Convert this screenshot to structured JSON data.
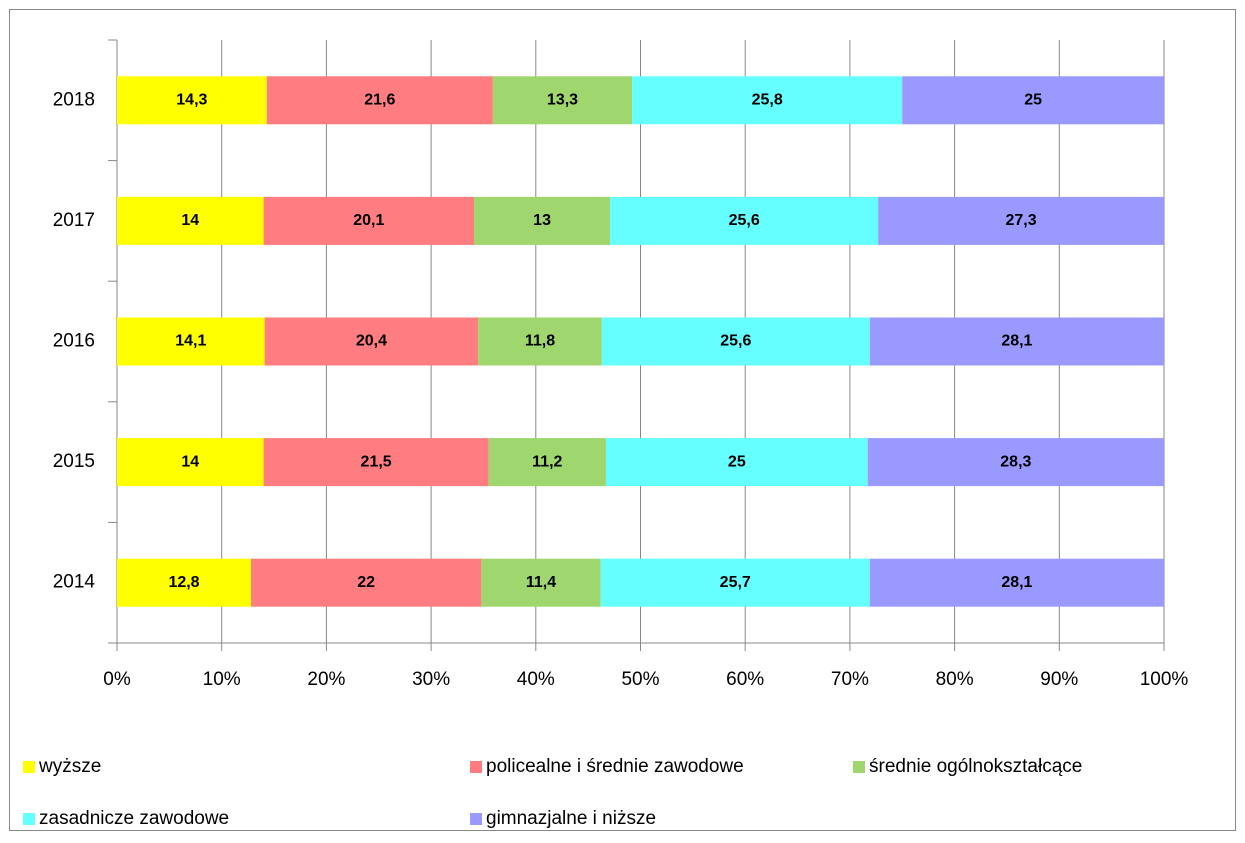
{
  "chart_data": {
    "type": "bar",
    "orientation": "horizontal",
    "stacked": true,
    "categories": [
      "2014",
      "2015",
      "2016",
      "2017",
      "2018"
    ],
    "series": [
      {
        "name": "wyższe",
        "color": "#ffff00",
        "values": [
          12.8,
          14,
          14.1,
          14,
          14.3
        ],
        "value_labels": [
          "12,8",
          "14",
          "14,1",
          "14",
          "14,3"
        ]
      },
      {
        "name": "policealne i średnie zawodowe",
        "color": "#ff7c80",
        "values": [
          22,
          21.5,
          20.4,
          20.1,
          21.6
        ],
        "value_labels": [
          "22",
          "21,5",
          "20,4",
          "20,1",
          "21,6"
        ]
      },
      {
        "name": "średnie ogólnokształcące",
        "color": "#9fd66e",
        "values": [
          11.4,
          11.2,
          11.8,
          13,
          13.3
        ],
        "value_labels": [
          "11,4",
          "11,2",
          "11,8",
          "13",
          "13,3"
        ]
      },
      {
        "name": "zasadnicze zawodowe",
        "color": "#66ffff",
        "values": [
          25.7,
          25,
          25.6,
          25.6,
          25.8
        ],
        "value_labels": [
          "25,7",
          "25",
          "25,6",
          "25,6",
          "25,8"
        ]
      },
      {
        "name": "gimnazjalne i niższe",
        "color": "#9999ff",
        "values": [
          28.1,
          28.3,
          28.1,
          27.3,
          25
        ],
        "value_labels": [
          "28,1",
          "28,3",
          "28,1",
          "27,3",
          "25"
        ]
      }
    ],
    "xlim": [
      0,
      100
    ],
    "xticks": [
      {
        "value": 0,
        "label": "0%"
      },
      {
        "value": 10,
        "label": "10%"
      },
      {
        "value": 20,
        "label": "20%"
      },
      {
        "value": 30,
        "label": "30%"
      },
      {
        "value": 40,
        "label": "40%"
      },
      {
        "value": 50,
        "label": "50%"
      },
      {
        "value": 60,
        "label": "60%"
      },
      {
        "value": 70,
        "label": "70%"
      },
      {
        "value": 80,
        "label": "80%"
      },
      {
        "value": 90,
        "label": "90%"
      },
      {
        "value": 100,
        "label": "100%"
      }
    ],
    "grid": true,
    "legend": "bottom"
  }
}
